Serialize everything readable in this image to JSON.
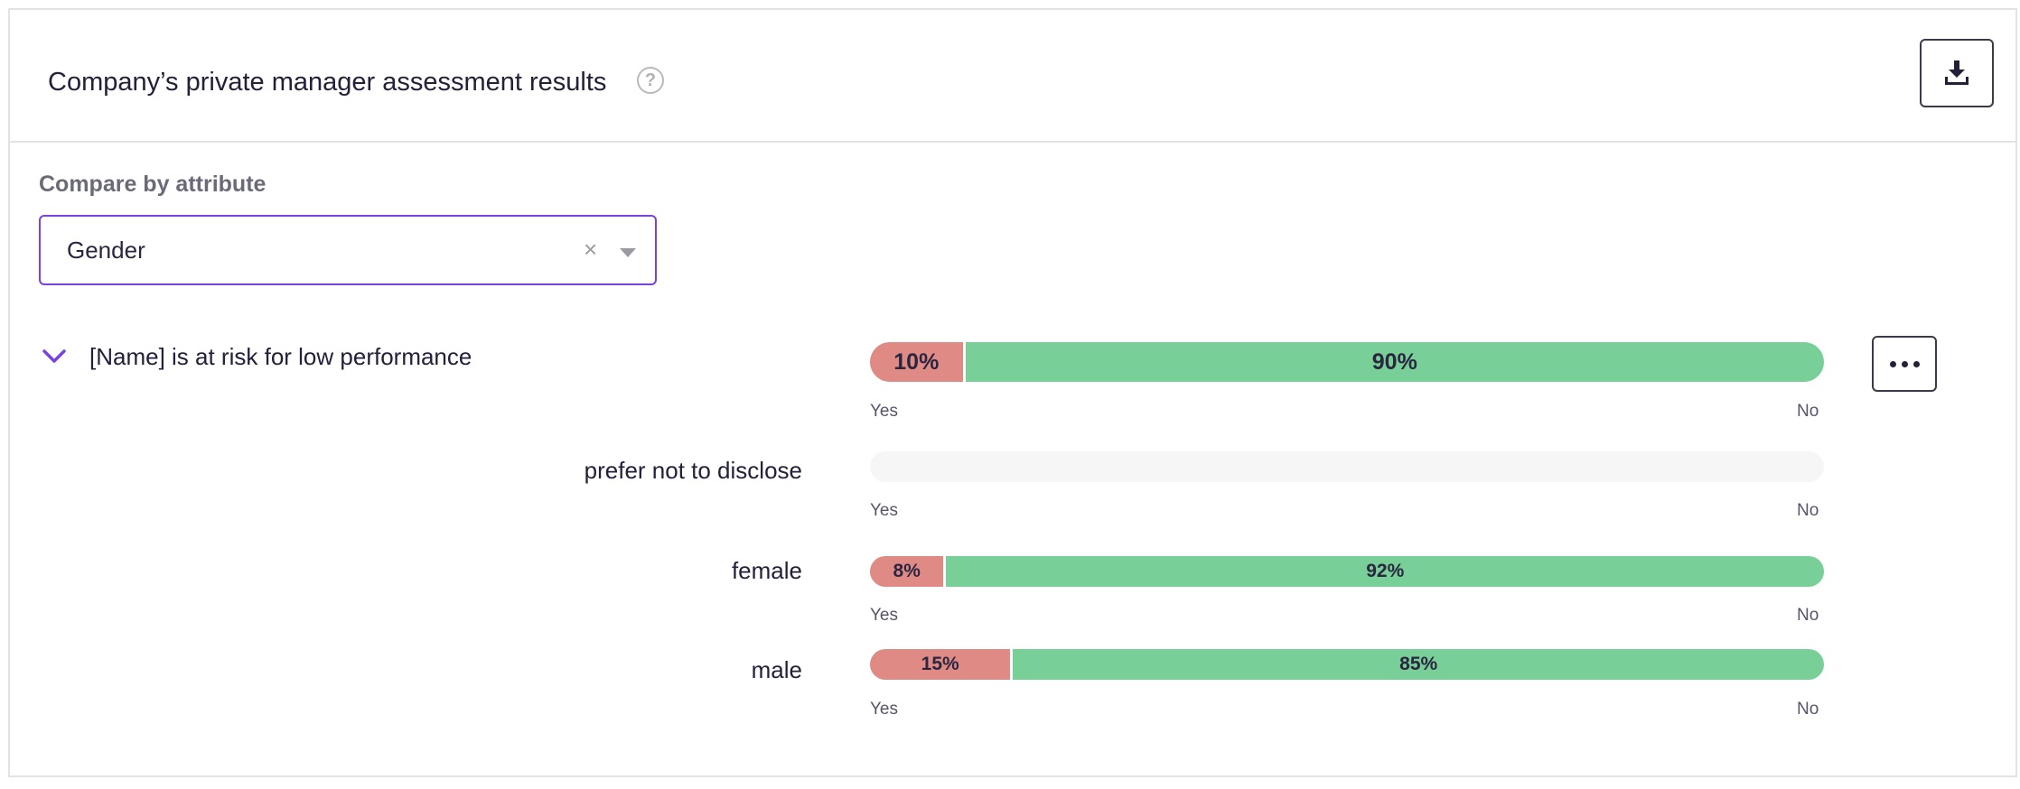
{
  "header": {
    "title": "Company’s private manager assessment results",
    "help_icon": "question-circle-icon",
    "download_icon": "download-icon"
  },
  "compare": {
    "label": "Compare by attribute",
    "selected": "Gender",
    "clear_symbol": "×"
  },
  "question": {
    "label": "[Name] is at risk for low performance",
    "overall": {
      "yes_pct": 10,
      "no_pct": 90,
      "yes_label": "10%",
      "no_label": "90%"
    }
  },
  "axis": {
    "yes": "Yes",
    "no": "No"
  },
  "groups": [
    {
      "name": "prefer not to disclose",
      "yes_pct": 0,
      "no_pct": 0,
      "yes_label": "",
      "no_label": ""
    },
    {
      "name": "female",
      "yes_pct": 8,
      "no_pct": 92,
      "yes_label": "8%",
      "no_label": "92%"
    },
    {
      "name": "male",
      "yes_pct": 15,
      "no_pct": 85,
      "yes_label": "15%",
      "no_label": "85%"
    }
  ],
  "colors": {
    "yes": "#e08a85",
    "no": "#78cf98",
    "empty": "#f6f6f7",
    "accent": "#7a42e0"
  }
}
